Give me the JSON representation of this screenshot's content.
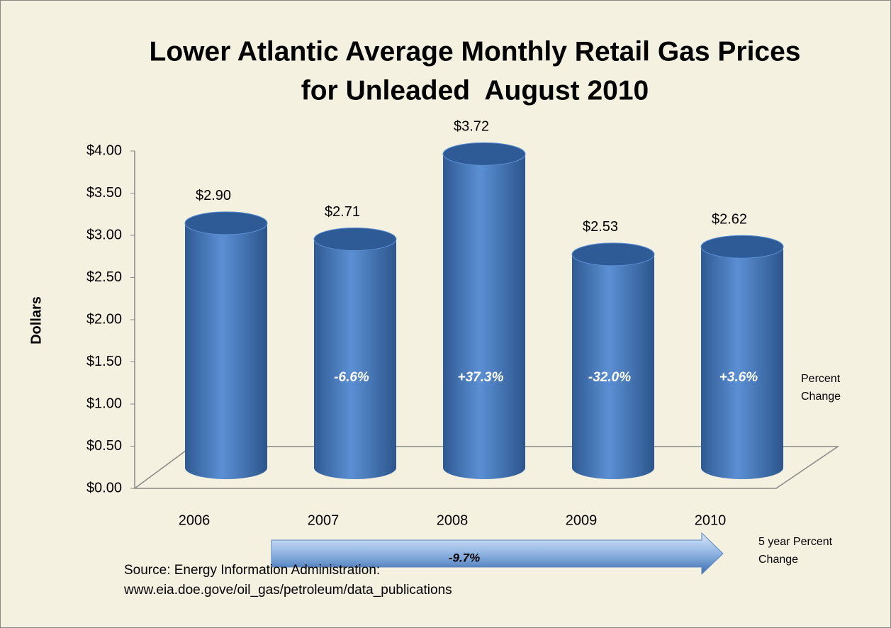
{
  "chart_data": {
    "type": "bar",
    "title": [
      "Lower Atlantic Average Monthly Retail Gas Prices",
      "for Unleaded  August 2010"
    ],
    "y_label": "Dollars",
    "categories": [
      "2006",
      "2007",
      "2008",
      "2009",
      "2010"
    ],
    "values": [
      2.9,
      2.71,
      3.72,
      2.53,
      2.62
    ],
    "value_labels": [
      "$2.90",
      "$2.71",
      "$3.72",
      "$2.53",
      "$2.62"
    ],
    "color": "#4f81bd",
    "ylim": [
      0,
      4
    ],
    "yticks": [
      {
        "value": 0,
        "label": "$0.00"
      },
      {
        "value": 0.5,
        "label": "$0.50"
      },
      {
        "value": 1,
        "label": "$1.00"
      },
      {
        "value": 1.5,
        "label": "$1.50"
      },
      {
        "value": 2,
        "label": "$2.00"
      },
      {
        "value": 2.5,
        "label": "$2.50"
      },
      {
        "value": 3,
        "label": "$3.00"
      },
      {
        "value": 3.5,
        "label": "$3.50"
      },
      {
        "value": 4,
        "label": "$4.00"
      }
    ],
    "grid": false,
    "percent_changes": [
      null,
      "-6.6%",
      "+37.3%",
      "-32.0%",
      "+3.6%"
    ],
    "percent_change_label": [
      "Percent",
      "Change"
    ],
    "five_year_change": "-9.7%",
    "five_year_label": [
      "5 year Percent",
      "Change"
    ],
    "source": [
      "Source: Energy Information Administration:",
      "www.eia.doe.gove/oil_gas/petroleum/data_publications"
    ]
  }
}
